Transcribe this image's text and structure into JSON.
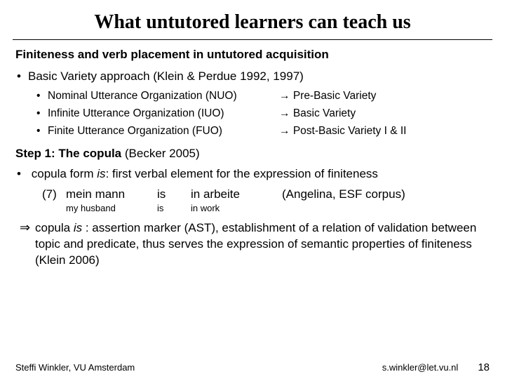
{
  "title": "What untutored learners can teach us",
  "subhead": "Finiteness and verb placement in untutored acquisition",
  "b1": "Basic Variety approach (Klein & Perdue 1992, 1997)",
  "rows": [
    {
      "l": "Nominal Utterance Organization (NUO)",
      "r": "Pre-Basic Variety"
    },
    {
      "l": "Infinite Utterance Organization (IUO)",
      "r": "Basic Variety"
    },
    {
      "l": "Finite Utterance Organization (FUO)",
      "r": "Post-Basic Variety I & II"
    }
  ],
  "step_label": "Step 1: The copula",
  "step_ref": " (Becker 2005)",
  "copula_pre": "copula form ",
  "copula_is": "is",
  "copula_post": ": first verbal element for the expression of finiteness",
  "ex": {
    "num": "(7)",
    "c1": "mein mann",
    "c2": "is",
    "c3": "in arbeite",
    "c4": "(Angelina, ESF corpus)",
    "g1": "my husband",
    "g2": "is",
    "g3": "in work"
  },
  "concl_pre": "copula ",
  "concl_is": "is",
  "concl_post": " : assertion marker (AST), establishment of a relation of validation between topic and predicate, thus serves the expression of semantic properties of finiteness (Klein 2006)",
  "arrow": "→",
  "big_arrow": "⇒",
  "footer_left": "Steffi Winkler, VU Amsterdam",
  "footer_email": "s.winkler@let.vu.nl",
  "footer_page": "18"
}
